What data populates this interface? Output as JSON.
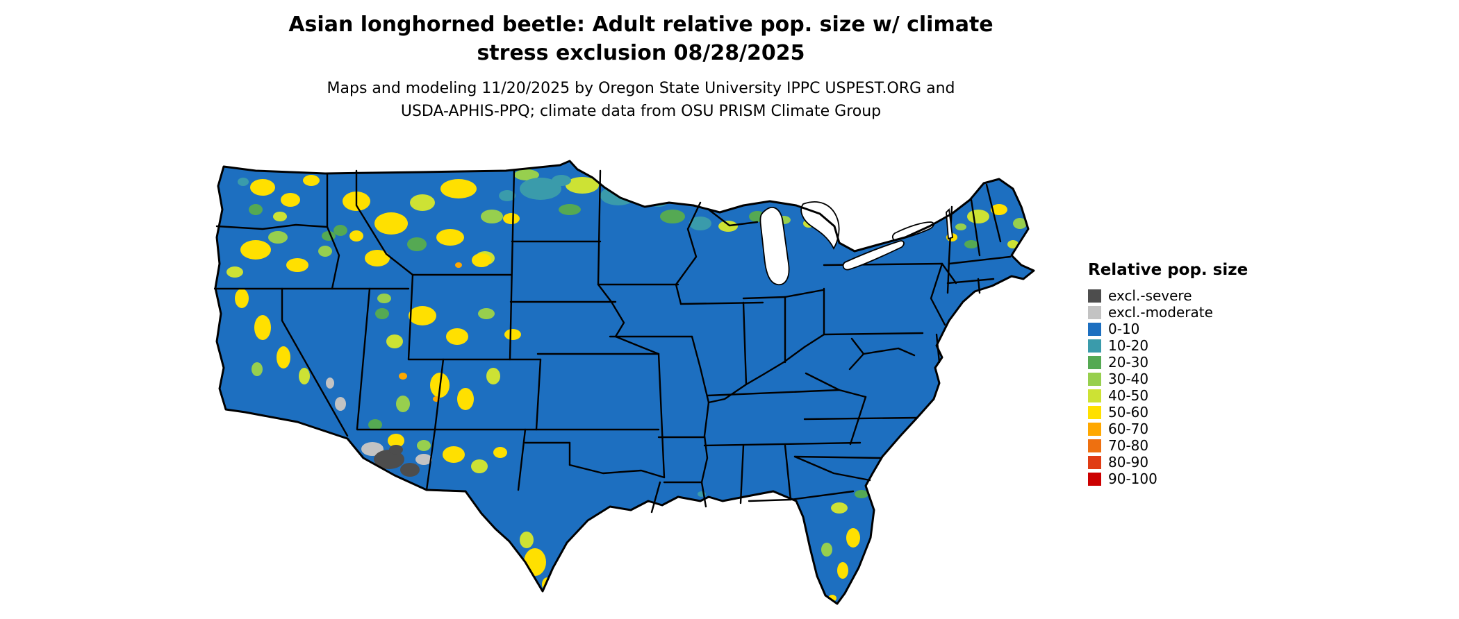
{
  "header": {
    "title_line1": "Asian longhorned beetle: Adult relative pop. size w/ climate",
    "title_line2": "stress exclusion 08/28/2025",
    "subtitle_line1": "Maps and modeling 11/20/2025 by Oregon State University IPPC USPEST.ORG and",
    "subtitle_line2": "USDA-APHIS-PPQ; climate data from OSU PRISM Climate Group"
  },
  "legend": {
    "title": "Relative pop. size",
    "items": [
      {
        "label": "excl.-severe",
        "color": "#4d4d4d"
      },
      {
        "label": "excl.-moderate",
        "color": "#c3c3c3"
      },
      {
        "label": "0-10",
        "color": "#1d6fc0"
      },
      {
        "label": "10-20",
        "color": "#3a9bab"
      },
      {
        "label": "20-30",
        "color": "#55a953"
      },
      {
        "label": "30-40",
        "color": "#97cf4e"
      },
      {
        "label": "40-50",
        "color": "#cde234"
      },
      {
        "label": "50-60",
        "color": "#ffe000"
      },
      {
        "label": "60-70",
        "color": "#ffa800"
      },
      {
        "label": "70-80",
        "color": "#ee7010"
      },
      {
        "label": "80-90",
        "color": "#e03c14"
      },
      {
        "label": "90-100",
        "color": "#cc0000"
      }
    ]
  },
  "map": {
    "base_color": "#1d6fc0",
    "border_color": "#000000",
    "water_color": "#ffffff"
  }
}
